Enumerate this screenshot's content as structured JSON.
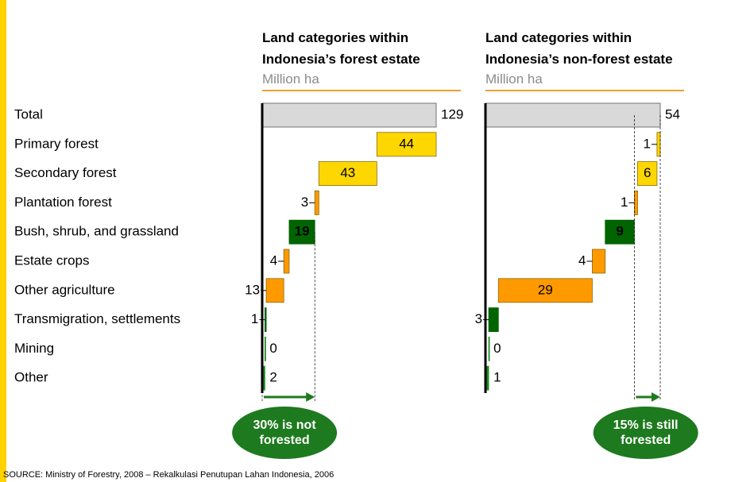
{
  "categories": [
    "Total",
    "Primary forest",
    "Secondary forest",
    "Plantation forest",
    "Bush, shrub, and grassland",
    "Estate crops",
    "Other agriculture",
    "Transmigration, settlements",
    "Mining",
    "Other"
  ],
  "chart_data": [
    {
      "type": "waterfall",
      "title": "Land categories within Indonesia’s forest estate",
      "subtitle": "Million ha",
      "values": [
        129,
        44,
        43,
        3,
        19,
        4,
        13,
        1,
        0,
        2
      ],
      "colors": [
        "#d9d9d9",
        "#ffd700",
        "#ffd700",
        "#ff9900",
        "#006400",
        "#ff9900",
        "#ff9900",
        "#006400",
        "#1e8c1e",
        "#1e8c1e"
      ],
      "xlim": [
        0,
        129
      ],
      "annotation": "30% is not forested"
    },
    {
      "type": "waterfall",
      "title": "Land categories within Indonesia’s non-forest estate",
      "subtitle": "Million ha",
      "values": [
        54,
        1,
        6,
        1,
        9,
        4,
        29,
        3,
        0,
        1
      ],
      "colors": [
        "#d9d9d9",
        "#ffd700",
        "#ffd700",
        "#ff9900",
        "#006400",
        "#ff9900",
        "#ff9900",
        "#006400",
        "#1e8c1e",
        "#1e8c1e"
      ],
      "xlim": [
        0,
        54
      ],
      "annotation": "15% is still forested"
    }
  ],
  "source": "SOURCE: Ministry of Forestry, 2008 – Rekalkulasi Penutupan Lahan Indonesia, 2006"
}
